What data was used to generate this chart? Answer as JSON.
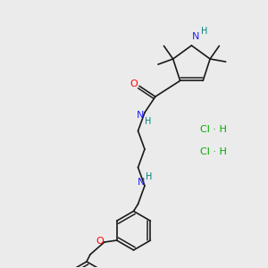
{
  "bg_color": "#ebebeb",
  "bond_color": "#1a1a1a",
  "N_color": "#2020ff",
  "O_color": "#ff0000",
  "H_color": "#008080",
  "Cl_color": "#00aa00",
  "lw": 1.2,
  "figsize": [
    3.0,
    3.0
  ],
  "dpi": 100,
  "xlim": [
    0,
    300
  ],
  "ylim": [
    0,
    300
  ]
}
